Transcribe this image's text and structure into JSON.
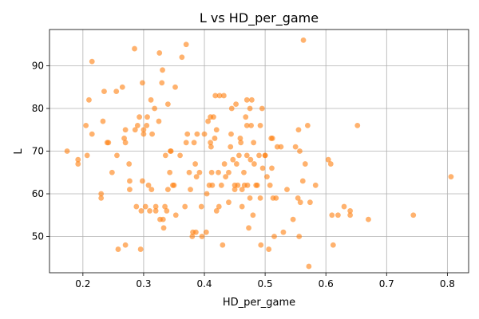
{
  "chart_data": {
    "type": "scatter",
    "title": "L vs HD_per_game",
    "xlabel": "HD_per_game",
    "ylabel": "L",
    "xlim": [
      0.145,
      0.835
    ],
    "ylim": [
      41.5,
      98.5
    ],
    "xticks": [
      0.2,
      0.3,
      0.4,
      0.5,
      0.6,
      0.7,
      0.8
    ],
    "xtick_labels": [
      "0.2",
      "0.3",
      "0.4",
      "0.5",
      "0.6",
      "0.7",
      "0.8"
    ],
    "yticks": [
      50,
      60,
      70,
      80,
      90
    ],
    "ytick_labels": [
      "50",
      "60",
      "70",
      "80",
      "90"
    ],
    "grid": true,
    "marker_color": "#ff7f0e",
    "marker_alpha": 0.6,
    "points": [
      {
        "x": 0.174,
        "y": 70
      },
      {
        "x": 0.192,
        "y": 68
      },
      {
        "x": 0.192,
        "y": 67
      },
      {
        "x": 0.205,
        "y": 76
      },
      {
        "x": 0.207,
        "y": 69
      },
      {
        "x": 0.21,
        "y": 82
      },
      {
        "x": 0.215,
        "y": 91
      },
      {
        "x": 0.215,
        "y": 74
      },
      {
        "x": 0.23,
        "y": 60
      },
      {
        "x": 0.23,
        "y": 59
      },
      {
        "x": 0.233,
        "y": 77
      },
      {
        "x": 0.235,
        "y": 84
      },
      {
        "x": 0.24,
        "y": 72
      },
      {
        "x": 0.242,
        "y": 72
      },
      {
        "x": 0.248,
        "y": 65
      },
      {
        "x": 0.255,
        "y": 84
      },
      {
        "x": 0.256,
        "y": 69
      },
      {
        "x": 0.258,
        "y": 47
      },
      {
        "x": 0.265,
        "y": 85
      },
      {
        "x": 0.268,
        "y": 73
      },
      {
        "x": 0.27,
        "y": 48
      },
      {
        "x": 0.27,
        "y": 72
      },
      {
        "x": 0.27,
        "y": 75
      },
      {
        "x": 0.276,
        "y": 67
      },
      {
        "x": 0.277,
        "y": 63
      },
      {
        "x": 0.277,
        "y": 61
      },
      {
        "x": 0.285,
        "y": 94
      },
      {
        "x": 0.286,
        "y": 75
      },
      {
        "x": 0.288,
        "y": 57
      },
      {
        "x": 0.29,
        "y": 76
      },
      {
        "x": 0.293,
        "y": 78
      },
      {
        "x": 0.295,
        "y": 47
      },
      {
        "x": 0.296,
        "y": 56
      },
      {
        "x": 0.298,
        "y": 86
      },
      {
        "x": 0.298,
        "y": 63
      },
      {
        "x": 0.3,
        "y": 75
      },
      {
        "x": 0.3,
        "y": 74
      },
      {
        "x": 0.303,
        "y": 57
      },
      {
        "x": 0.305,
        "y": 76
      },
      {
        "x": 0.306,
        "y": 78
      },
      {
        "x": 0.308,
        "y": 62
      },
      {
        "x": 0.31,
        "y": 56
      },
      {
        "x": 0.312,
        "y": 82
      },
      {
        "x": 0.313,
        "y": 61
      },
      {
        "x": 0.314,
        "y": 74
      },
      {
        "x": 0.318,
        "y": 80
      },
      {
        "x": 0.32,
        "y": 57
      },
      {
        "x": 0.32,
        "y": 56
      },
      {
        "x": 0.325,
        "y": 77
      },
      {
        "x": 0.326,
        "y": 93
      },
      {
        "x": 0.327,
        "y": 54
      },
      {
        "x": 0.33,
        "y": 86
      },
      {
        "x": 0.331,
        "y": 89
      },
      {
        "x": 0.332,
        "y": 54
      },
      {
        "x": 0.333,
        "y": 52
      },
      {
        "x": 0.335,
        "y": 57
      },
      {
        "x": 0.336,
        "y": 69
      },
      {
        "x": 0.338,
        "y": 56
      },
      {
        "x": 0.34,
        "y": 61
      },
      {
        "x": 0.34,
        "y": 81
      },
      {
        "x": 0.343,
        "y": 65
      },
      {
        "x": 0.344,
        "y": 70
      },
      {
        "x": 0.345,
        "y": 70
      },
      {
        "x": 0.348,
        "y": 62
      },
      {
        "x": 0.35,
        "y": 62
      },
      {
        "x": 0.352,
        "y": 85
      },
      {
        "x": 0.353,
        "y": 55
      },
      {
        "x": 0.36,
        "y": 69
      },
      {
        "x": 0.363,
        "y": 92
      },
      {
        "x": 0.368,
        "y": 57
      },
      {
        "x": 0.37,
        "y": 95
      },
      {
        "x": 0.37,
        "y": 72
      },
      {
        "x": 0.372,
        "y": 74
      },
      {
        "x": 0.375,
        "y": 65
      },
      {
        "x": 0.377,
        "y": 61
      },
      {
        "x": 0.38,
        "y": 50
      },
      {
        "x": 0.381,
        "y": 51
      },
      {
        "x": 0.383,
        "y": 72
      },
      {
        "x": 0.385,
        "y": 67
      },
      {
        "x": 0.386,
        "y": 51
      },
      {
        "x": 0.387,
        "y": 64
      },
      {
        "x": 0.388,
        "y": 74
      },
      {
        "x": 0.392,
        "y": 65
      },
      {
        "x": 0.395,
        "y": 57
      },
      {
        "x": 0.396,
        "y": 50
      },
      {
        "x": 0.4,
        "y": 74
      },
      {
        "x": 0.403,
        "y": 51
      },
      {
        "x": 0.404,
        "y": 60
      },
      {
        "x": 0.406,
        "y": 77
      },
      {
        "x": 0.408,
        "y": 62
      },
      {
        "x": 0.41,
        "y": 78
      },
      {
        "x": 0.41,
        "y": 72
      },
      {
        "x": 0.411,
        "y": 71
      },
      {
        "x": 0.412,
        "y": 65
      },
      {
        "x": 0.413,
        "y": 62
      },
      {
        "x": 0.415,
        "y": 78
      },
      {
        "x": 0.417,
        "y": 73
      },
      {
        "x": 0.418,
        "y": 83
      },
      {
        "x": 0.42,
        "y": 56
      },
      {
        "x": 0.42,
        "y": 75
      },
      {
        "x": 0.423,
        "y": 65
      },
      {
        "x": 0.424,
        "y": 57
      },
      {
        "x": 0.425,
        "y": 83
      },
      {
        "x": 0.428,
        "y": 62
      },
      {
        "x": 0.43,
        "y": 48
      },
      {
        "x": 0.432,
        "y": 83
      },
      {
        "x": 0.433,
        "y": 67
      },
      {
        "x": 0.435,
        "y": 64
      },
      {
        "x": 0.44,
        "y": 58
      },
      {
        "x": 0.44,
        "y": 65
      },
      {
        "x": 0.443,
        "y": 71
      },
      {
        "x": 0.444,
        "y": 74
      },
      {
        "x": 0.445,
        "y": 80
      },
      {
        "x": 0.447,
        "y": 68
      },
      {
        "x": 0.45,
        "y": 62
      },
      {
        "x": 0.45,
        "y": 61
      },
      {
        "x": 0.452,
        "y": 81
      },
      {
        "x": 0.453,
        "y": 67
      },
      {
        "x": 0.455,
        "y": 62
      },
      {
        "x": 0.457,
        "y": 69
      },
      {
        "x": 0.459,
        "y": 73
      },
      {
        "x": 0.46,
        "y": 72
      },
      {
        "x": 0.462,
        "y": 57
      },
      {
        "x": 0.462,
        "y": 61
      },
      {
        "x": 0.465,
        "y": 65
      },
      {
        "x": 0.466,
        "y": 62
      },
      {
        "x": 0.468,
        "y": 78
      },
      {
        "x": 0.47,
        "y": 76
      },
      {
        "x": 0.47,
        "y": 82
      },
      {
        "x": 0.47,
        "y": 69
      },
      {
        "x": 0.471,
        "y": 62
      },
      {
        "x": 0.473,
        "y": 52
      },
      {
        "x": 0.475,
        "y": 59
      },
      {
        "x": 0.475,
        "y": 80
      },
      {
        "x": 0.476,
        "y": 68
      },
      {
        "x": 0.477,
        "y": 76
      },
      {
        "x": 0.478,
        "y": 82
      },
      {
        "x": 0.48,
        "y": 55
      },
      {
        "x": 0.481,
        "y": 72
      },
      {
        "x": 0.482,
        "y": 67
      },
      {
        "x": 0.485,
        "y": 62
      },
      {
        "x": 0.487,
        "y": 62
      },
      {
        "x": 0.49,
        "y": 69
      },
      {
        "x": 0.492,
        "y": 76
      },
      {
        "x": 0.492,
        "y": 59
      },
      {
        "x": 0.493,
        "y": 48
      },
      {
        "x": 0.495,
        "y": 80
      },
      {
        "x": 0.496,
        "y": 66
      },
      {
        "x": 0.5,
        "y": 69
      },
      {
        "x": 0.5,
        "y": 69
      },
      {
        "x": 0.503,
        "y": 64
      },
      {
        "x": 0.506,
        "y": 47
      },
      {
        "x": 0.508,
        "y": 62
      },
      {
        "x": 0.51,
        "y": 73
      },
      {
        "x": 0.511,
        "y": 66
      },
      {
        "x": 0.512,
        "y": 73
      },
      {
        "x": 0.513,
        "y": 59
      },
      {
        "x": 0.515,
        "y": 50
      },
      {
        "x": 0.518,
        "y": 59
      },
      {
        "x": 0.52,
        "y": 71
      },
      {
        "x": 0.526,
        "y": 71
      },
      {
        "x": 0.53,
        "y": 51
      },
      {
        "x": 0.536,
        "y": 61
      },
      {
        "x": 0.546,
        "y": 54
      },
      {
        "x": 0.55,
        "y": 71
      },
      {
        "x": 0.554,
        "y": 59
      },
      {
        "x": 0.555,
        "y": 75
      },
      {
        "x": 0.556,
        "y": 50
      },
      {
        "x": 0.557,
        "y": 70
      },
      {
        "x": 0.558,
        "y": 58
      },
      {
        "x": 0.562,
        "y": 63
      },
      {
        "x": 0.563,
        "y": 96
      },
      {
        "x": 0.566,
        "y": 67
      },
      {
        "x": 0.57,
        "y": 76
      },
      {
        "x": 0.572,
        "y": 43
      },
      {
        "x": 0.574,
        "y": 58
      },
      {
        "x": 0.583,
        "y": 62
      },
      {
        "x": 0.604,
        "y": 68
      },
      {
        "x": 0.608,
        "y": 67
      },
      {
        "x": 0.61,
        "y": 55
      },
      {
        "x": 0.612,
        "y": 48
      },
      {
        "x": 0.62,
        "y": 55
      },
      {
        "x": 0.63,
        "y": 57
      },
      {
        "x": 0.64,
        "y": 56
      },
      {
        "x": 0.64,
        "y": 55
      },
      {
        "x": 0.652,
        "y": 76
      },
      {
        "x": 0.67,
        "y": 54
      },
      {
        "x": 0.744,
        "y": 55
      },
      {
        "x": 0.806,
        "y": 64
      }
    ]
  }
}
